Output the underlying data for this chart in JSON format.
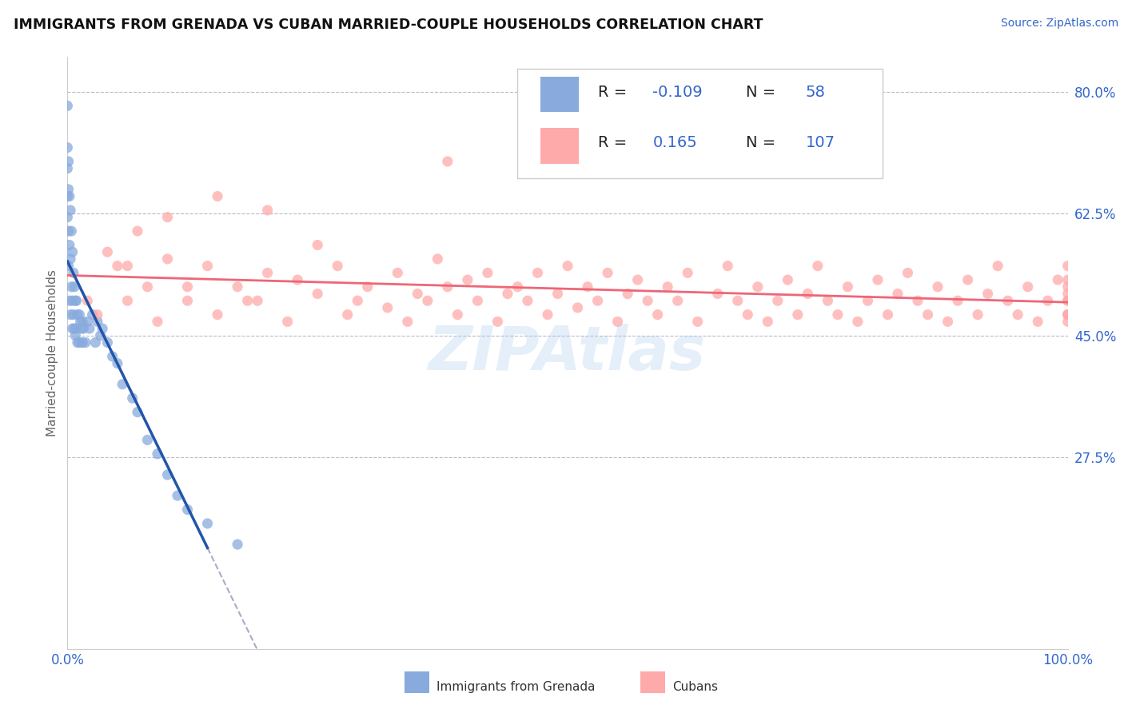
{
  "title": "IMMIGRANTS FROM GRENADA VS CUBAN MARRIED-COUPLE HOUSEHOLDS CORRELATION CHART",
  "source_text": "Source: ZipAtlas.com",
  "ylabel": "Married-couple Households",
  "legend1_label": "Immigrants from Grenada",
  "legend2_label": "Cubans",
  "R1": -0.109,
  "N1": 58,
  "R2": 0.165,
  "N2": 107,
  "color_blue": "#88AADD",
  "color_pink": "#FFAAAA",
  "color_blue_line": "#2255AA",
  "color_pink_line": "#EE6677",
  "color_dashed": "#AAAACC",
  "ylim": [
    0.0,
    0.85
  ],
  "yticks": [
    0.275,
    0.45,
    0.625,
    0.8
  ],
  "ytick_labels": [
    "27.5%",
    "45.0%",
    "62.5%",
    "80.0%"
  ],
  "xtick_labels": [
    "0.0%",
    "100.0%"
  ],
  "watermark": "ZIPAtlas",
  "blue_x": [
    0.0,
    0.0,
    0.0,
    0.0,
    0.0,
    0.001,
    0.001,
    0.001,
    0.001,
    0.002,
    0.002,
    0.002,
    0.003,
    0.003,
    0.003,
    0.004,
    0.004,
    0.005,
    0.005,
    0.005,
    0.006,
    0.006,
    0.007,
    0.007,
    0.008,
    0.008,
    0.009,
    0.009,
    0.01,
    0.01,
    0.012,
    0.012,
    0.013,
    0.014,
    0.015,
    0.015,
    0.016,
    0.018,
    0.02,
    0.022,
    0.025,
    0.028,
    0.03,
    0.033,
    0.035,
    0.04,
    0.045,
    0.05,
    0.055,
    0.065,
    0.07,
    0.08,
    0.09,
    0.1,
    0.11,
    0.12,
    0.14,
    0.17
  ],
  "blue_y": [
    0.78,
    0.72,
    0.69,
    0.65,
    0.62,
    0.7,
    0.66,
    0.6,
    0.55,
    0.65,
    0.58,
    0.5,
    0.63,
    0.56,
    0.48,
    0.6,
    0.52,
    0.57,
    0.5,
    0.46,
    0.54,
    0.48,
    0.52,
    0.46,
    0.5,
    0.45,
    0.5,
    0.46,
    0.48,
    0.44,
    0.48,
    0.44,
    0.47,
    0.46,
    0.47,
    0.44,
    0.46,
    0.44,
    0.47,
    0.46,
    0.48,
    0.44,
    0.47,
    0.45,
    0.46,
    0.44,
    0.42,
    0.41,
    0.38,
    0.36,
    0.34,
    0.3,
    0.28,
    0.25,
    0.22,
    0.2,
    0.18,
    0.15
  ],
  "pink_x": [
    0.02,
    0.03,
    0.05,
    0.06,
    0.08,
    0.09,
    0.1,
    0.12,
    0.14,
    0.15,
    0.17,
    0.19,
    0.2,
    0.22,
    0.23,
    0.25,
    0.27,
    0.28,
    0.29,
    0.3,
    0.32,
    0.33,
    0.34,
    0.35,
    0.36,
    0.37,
    0.38,
    0.39,
    0.4,
    0.41,
    0.42,
    0.43,
    0.44,
    0.45,
    0.46,
    0.47,
    0.48,
    0.49,
    0.5,
    0.51,
    0.52,
    0.53,
    0.54,
    0.55,
    0.56,
    0.57,
    0.58,
    0.59,
    0.6,
    0.61,
    0.62,
    0.63,
    0.65,
    0.66,
    0.67,
    0.68,
    0.69,
    0.7,
    0.71,
    0.72,
    0.73,
    0.74,
    0.75,
    0.76,
    0.77,
    0.78,
    0.79,
    0.8,
    0.81,
    0.82,
    0.83,
    0.84,
    0.85,
    0.86,
    0.87,
    0.88,
    0.89,
    0.9,
    0.91,
    0.92,
    0.93,
    0.94,
    0.95,
    0.96,
    0.97,
    0.98,
    0.99,
    1.0,
    1.0,
    1.0,
    1.0,
    1.0,
    1.0,
    1.0,
    1.0,
    1.0,
    1.0,
    0.38,
    0.2,
    0.25,
    0.15,
    0.1,
    0.07,
    0.04,
    0.06,
    0.12,
    0.18
  ],
  "pink_y": [
    0.5,
    0.48,
    0.55,
    0.5,
    0.52,
    0.47,
    0.56,
    0.5,
    0.55,
    0.48,
    0.52,
    0.5,
    0.54,
    0.47,
    0.53,
    0.51,
    0.55,
    0.48,
    0.5,
    0.52,
    0.49,
    0.54,
    0.47,
    0.51,
    0.5,
    0.56,
    0.52,
    0.48,
    0.53,
    0.5,
    0.54,
    0.47,
    0.51,
    0.52,
    0.5,
    0.54,
    0.48,
    0.51,
    0.55,
    0.49,
    0.52,
    0.5,
    0.54,
    0.47,
    0.51,
    0.53,
    0.5,
    0.48,
    0.52,
    0.5,
    0.54,
    0.47,
    0.51,
    0.55,
    0.5,
    0.48,
    0.52,
    0.47,
    0.5,
    0.53,
    0.48,
    0.51,
    0.55,
    0.5,
    0.48,
    0.52,
    0.47,
    0.5,
    0.53,
    0.48,
    0.51,
    0.54,
    0.5,
    0.48,
    0.52,
    0.47,
    0.5,
    0.53,
    0.48,
    0.51,
    0.55,
    0.5,
    0.48,
    0.52,
    0.47,
    0.5,
    0.53,
    0.48,
    0.51,
    0.55,
    0.5,
    0.48,
    0.52,
    0.47,
    0.5,
    0.53,
    0.48,
    0.7,
    0.63,
    0.58,
    0.65,
    0.62,
    0.6,
    0.57,
    0.55,
    0.52,
    0.5
  ]
}
